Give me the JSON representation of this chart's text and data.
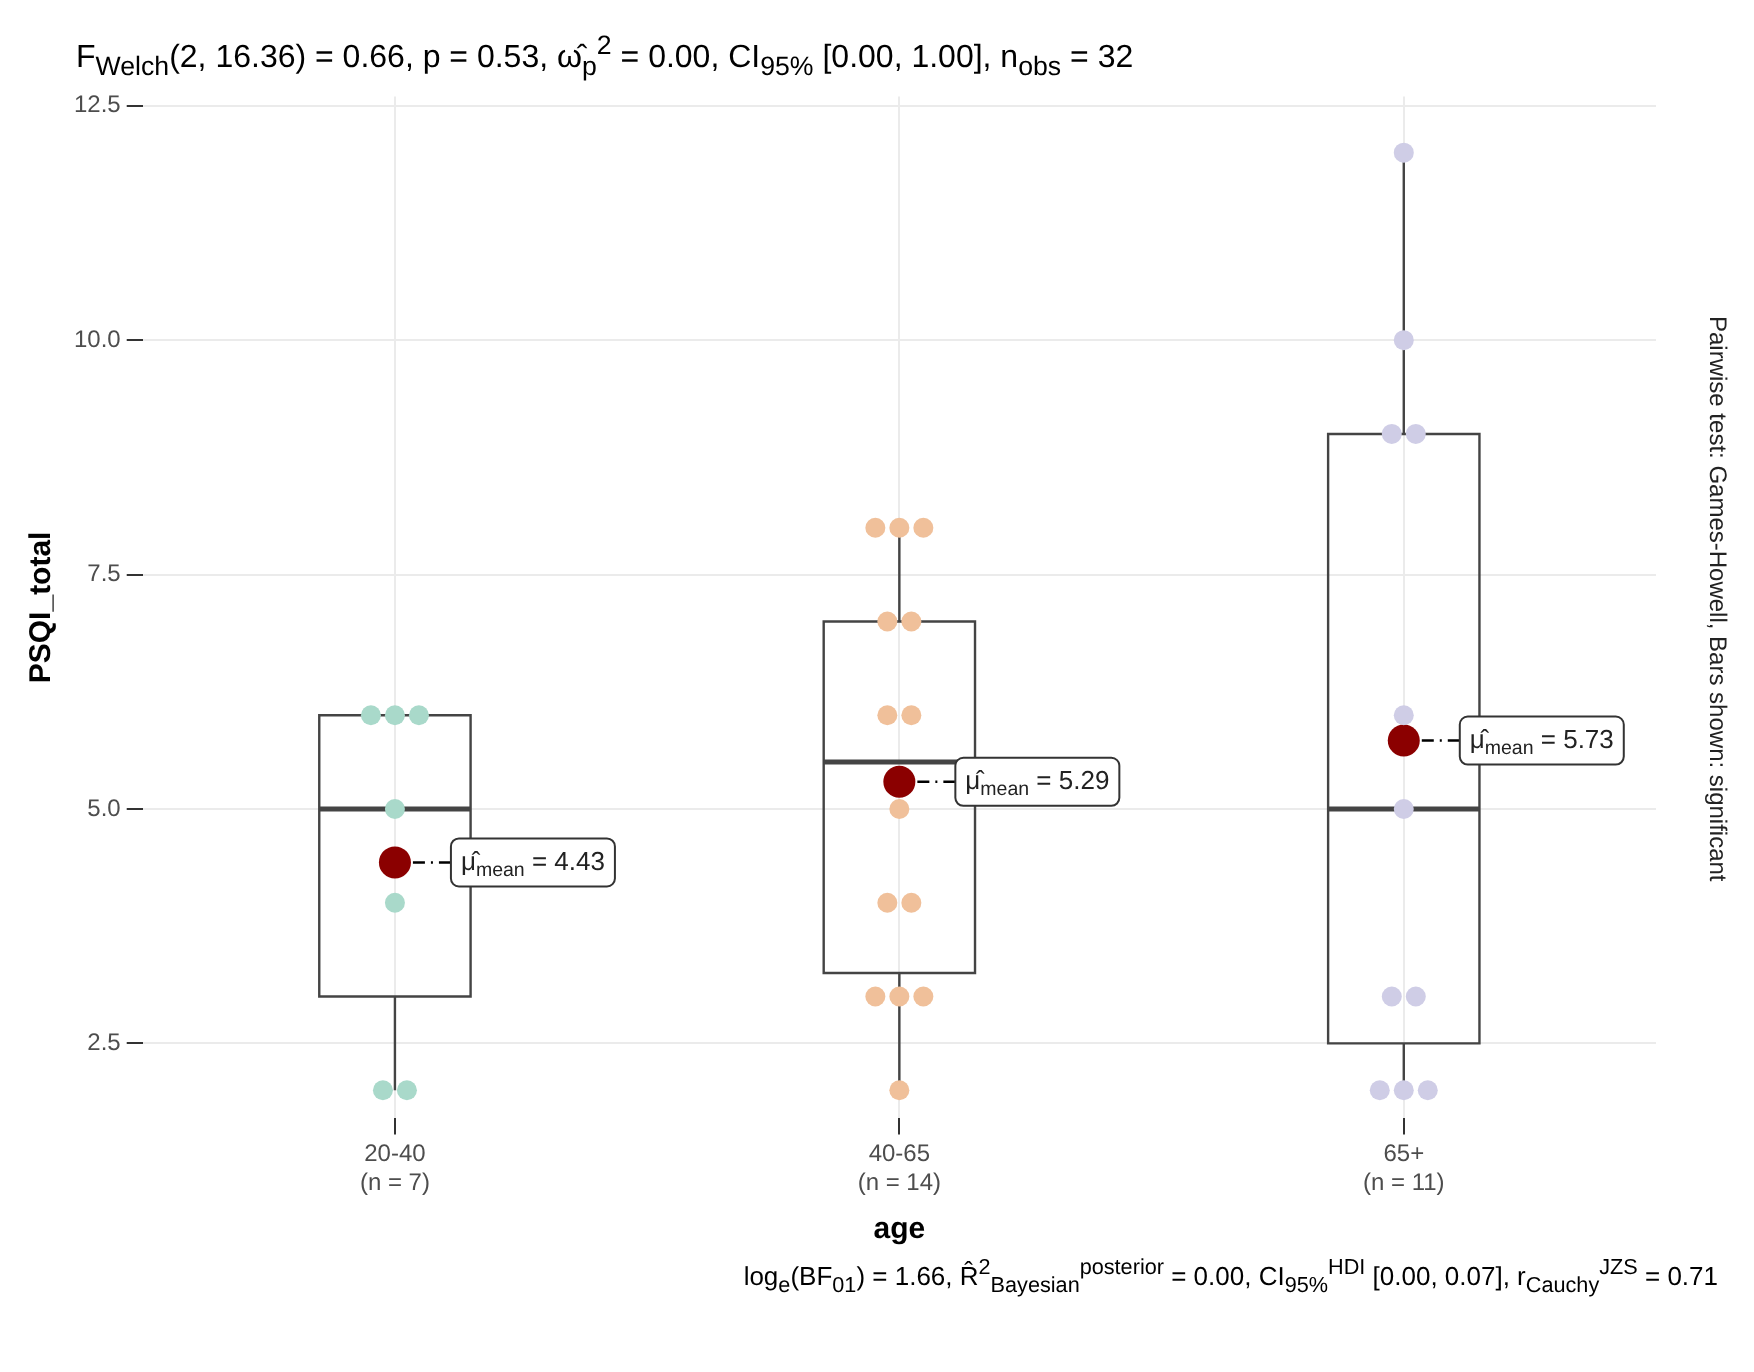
{
  "chart_data": {
    "type": "box",
    "title": "F$_{Welch}$(2, 16.36) = 0.66, p = 0.53, ω̂$_{p}$$^{2}$ = 0.00, CI$_{95%}$ [0.00, 1.00], n$_{obs}$ = 32",
    "subtitle": "Pairwise test: Games-Howell, Bars shown: significant",
    "xlabel": "age",
    "ylabel": "PSQI_total",
    "categories": [
      "20-40\n(n = 7)",
      "40-65\n(n = 14)",
      "65+\n(n = 11)"
    ],
    "boxes": [
      {
        "low": 2,
        "q1": 3,
        "median": 5,
        "q3": 6,
        "high": 6
      },
      {
        "low": 2,
        "q1": 3.25,
        "median": 5.5,
        "q3": 7,
        "high": 8
      },
      {
        "low": 2,
        "q1": 2.5,
        "median": 5,
        "q3": 9,
        "high": 12
      }
    ],
    "series": [
      {
        "type": "scatter",
        "x": [
          "20-40\n(n = 7)",
          "20-40\n(n = 7)",
          "20-40\n(n = 7)",
          "20-40\n(n = 7)",
          "20-40\n(n = 7)",
          "20-40\n(n = 7)",
          "20-40\n(n = 7)",
          "40-65\n(n = 14)",
          "40-65\n(n = 14)",
          "40-65\n(n = 14)",
          "40-65\n(n = 14)",
          "40-65\n(n = 14)",
          "40-65\n(n = 14)",
          "40-65\n(n = 14)",
          "40-65\n(n = 14)",
          "40-65\n(n = 14)",
          "40-65\n(n = 14)",
          "40-65\n(n = 14)",
          "40-65\n(n = 14)",
          "40-65\n(n = 14)",
          "40-65\n(n = 14)",
          "65+\n(n = 11)",
          "65+\n(n = 11)",
          "65+\n(n = 11)",
          "65+\n(n = 11)",
          "65+\n(n = 11)",
          "65+\n(n = 11)",
          "65+\n(n = 11)",
          "65+\n(n = 11)",
          "65+\n(n = 11)",
          "65+\n(n = 11)",
          "65+\n(n = 11)"
        ],
        "values": [
          6,
          6,
          6,
          5,
          4,
          2,
          2,
          8,
          8,
          8,
          7,
          7,
          6,
          6,
          5,
          4,
          4,
          3,
          3,
          3,
          2,
          12,
          10,
          9,
          9,
          6,
          5,
          3,
          3,
          2,
          2,
          2
        ],
        "colors": [
          "#a9d9ca",
          "#a9d9ca",
          "#a9d9ca",
          "#a9d9ca",
          "#a9d9ca",
          "#a9d9ca",
          "#a9d9ca",
          "#f0c09a",
          "#f0c09a",
          "#f0c09a",
          "#f0c09a",
          "#f0c09a",
          "#f0c09a",
          "#f0c09a",
          "#f0c09a",
          "#f0c09a",
          "#f0c09a",
          "#f0c09a",
          "#f0c09a",
          "#f0c09a",
          "#f0c09a",
          "#cfcde6",
          "#cfcde6",
          "#cfcde6",
          "#cfcde6",
          "#cfcde6",
          "#cfcde6",
          "#cfcde6",
          "#cfcde6",
          "#cfcde6",
          "#cfcde6",
          "#cfcde6"
        ]
      },
      {
        "type": "scatter",
        "x": [
          "20-40\n(n = 7)",
          "40-65\n(n = 14)",
          "65+\n(n = 11)"
        ],
        "values": [
          4.43,
          5.29,
          5.73
        ],
        "color": "#8b0000"
      }
    ],
    "annotations": [
      {
        "text": "μ̂$_{mean}$ = 4.43",
        "x": "20-40\n(n = 7)",
        "y": 4.43
      },
      {
        "text": "μ̂$_{mean}$ = 5.29",
        "x": "40-65\n(n = 14)",
        "y": 5.29
      },
      {
        "text": "μ̂$_{mean}$ = 5.73",
        "x": "65+\n(n = 11)",
        "y": 5.73
      },
      "log$_{e}$(BF$_{01}$) = 1.66, R̂$^{2}$$_{Bayesian}$$^{posterior}$ = 0.00, CI$_{95%}$$^{HDI}$ [0.00, 0.07], r$_{Cauchy}$$^{JZS}$ = 0.71"
    ],
    "ylim": [
      1.7,
      12.6
    ],
    "yticks": [
      {
        "value": 2.5,
        "label": "2.5"
      },
      {
        "value": 5,
        "label": "5.0"
      },
      {
        "value": 7.5,
        "label": "7.5"
      },
      {
        "value": 10,
        "label": "10.0"
      },
      {
        "value": 12.5,
        "label": "12.5"
      }
    ],
    "grid": true,
    "marker": "circle"
  }
}
